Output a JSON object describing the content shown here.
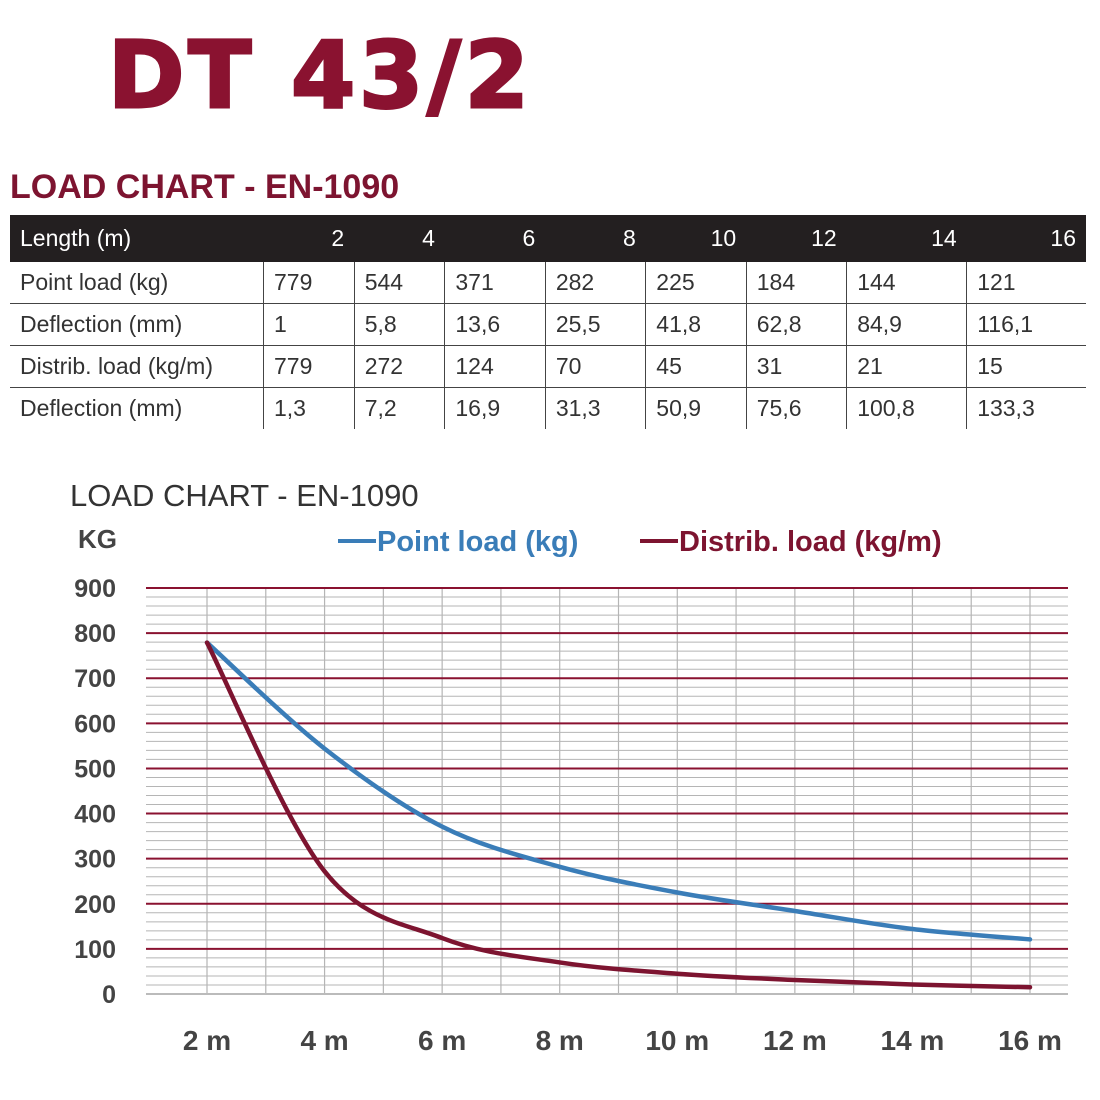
{
  "header": {
    "title": "DT 43/2",
    "subtitle": "LOAD CHART - EN-1090"
  },
  "table": {
    "columns": [
      "Length (m)",
      "2",
      "4",
      "6",
      "8",
      "10",
      "12",
      "14",
      "16"
    ],
    "rows": [
      [
        "Point load (kg)",
        "779",
        "544",
        "371",
        "282",
        "225",
        "184",
        "144",
        "121"
      ],
      [
        "Deflection (mm)",
        "1",
        "5,8",
        "13,6",
        "25,5",
        "41,8",
        "62,8",
        "84,9",
        "116,1"
      ],
      [
        "Distrib. load (kg/m)",
        "779",
        "272",
        "124",
        "70",
        "45",
        "31",
        "21",
        "15"
      ],
      [
        "Deflection (mm)",
        "1,3",
        "7,2",
        "16,9",
        "31,3",
        "50,9",
        "75,6",
        "100,8",
        "133,3"
      ]
    ]
  },
  "chart_data": {
    "type": "line",
    "title": "LOAD CHART - EN-1090",
    "ylabel": "KG",
    "xlabel": "",
    "x": [
      2,
      4,
      6,
      8,
      10,
      12,
      14,
      16
    ],
    "x_tick_labels": [
      "2 m",
      "4 m",
      "6 m",
      "8 m",
      "10 m",
      "12 m",
      "14 m",
      "16 m"
    ],
    "y_ticks": [
      0,
      100,
      200,
      300,
      400,
      500,
      600,
      700,
      800,
      900
    ],
    "ylim": [
      0,
      900
    ],
    "xlim": [
      1,
      17
    ],
    "grid": true,
    "legend": "top",
    "series": [
      {
        "name": "Point load (kg)",
        "color": "#3a7db8",
        "values": [
          779,
          544,
          371,
          282,
          225,
          184,
          144,
          121
        ]
      },
      {
        "name": "Distrib. load (kg/m)",
        "color": "#7d1430",
        "values": [
          779,
          272,
          124,
          70,
          45,
          31,
          21,
          15
        ]
      }
    ],
    "major_grid_color": "#8a1230",
    "minor_grid_color": "#b5b5b5"
  }
}
